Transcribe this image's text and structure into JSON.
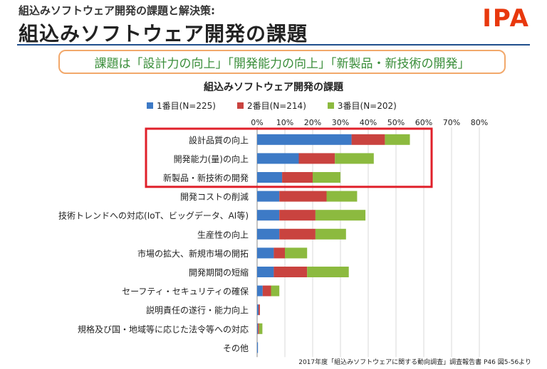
{
  "header": {
    "subtitle": "組込みソフトウェア開発の課題と解決策:",
    "title": "組込みソフトウェア開発の課題",
    "logo": "IPA",
    "callout": "課題は「設計力の向上」「開発能力の向上」「新製品・新技術の開発」"
  },
  "chart_data": {
    "type": "bar",
    "orientation": "horizontal",
    "stacked": true,
    "title": "組込みソフトウェア開発の課題",
    "categories": [
      "設計品質の向上",
      "開発能力(量)の向上",
      "新製品・新技術の開発",
      "開発コストの削減",
      "技術トレンドへの対応(IoT、ビッグデータ、AI等)",
      "生産性の向上",
      "市場の拡大、新規市場の開拓",
      "開発期間の短縮",
      "セーフティ・セキュリティの確保",
      "説明責任の遂行・能力向上",
      "規格及び国・地域等に応じた法令等への対応",
      "その他"
    ],
    "series": [
      {
        "name": "1番目(N=225)",
        "color": "#3d7ac6",
        "values": [
          34,
          15,
          9,
          8,
          8,
          8,
          6,
          6,
          2,
          0.5,
          0.3,
          0.3
        ]
      },
      {
        "name": "2番目(N=214)",
        "color": "#c9433f",
        "values": [
          12,
          13,
          11,
          17,
          13,
          13,
          4,
          12,
          3,
          0.5,
          0.4,
          0
        ]
      },
      {
        "name": "3番目(N=202)",
        "color": "#8cba3f",
        "values": [
          9,
          14,
          10,
          11,
          18,
          11,
          8,
          15,
          3,
          0,
          1.2,
          0
        ]
      }
    ],
    "xlim": [
      0,
      80
    ],
    "xticks": [
      "0%",
      "10%",
      "20%",
      "30%",
      "40%",
      "50%",
      "60%",
      "70%",
      "80%"
    ],
    "highlight_categories": [
      0,
      1,
      2
    ],
    "legend_position": "top"
  },
  "source": "2017年度「組込みソフトウェアに関する動向調査」調査報告書 P46 図5-56より"
}
